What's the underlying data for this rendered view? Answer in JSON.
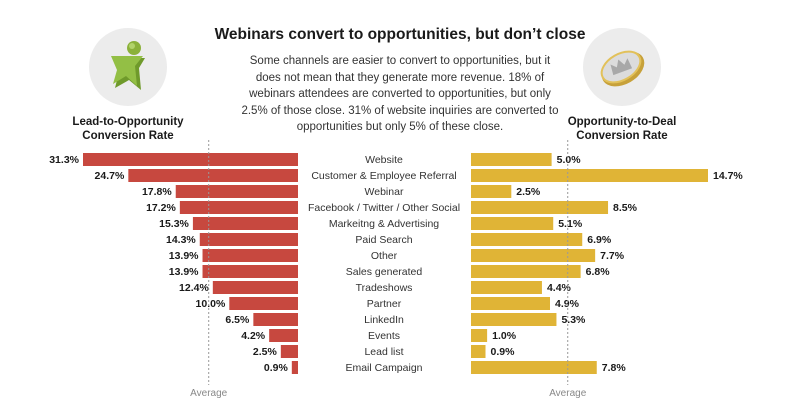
{
  "header": {
    "title": "Webinars convert to opportunities, but don’t close",
    "subtitle_lines": [
      "Some channels are easier to convert to opportunities, but it",
      "does not mean that they generate more revenue. 18% of",
      "webinars attendees are converted to opportunities, but only",
      "2.5% of those close. 31% of website inquiries are converted to",
      "opportunities but only 5% of these close."
    ]
  },
  "icons": {
    "left": "star-person-icon",
    "right": "crown-coin-icon"
  },
  "labels": {
    "left_line1": "Lead-to-Opportunity",
    "left_line2": "Conversion Rate",
    "right_line1": "Opportunity-to-Deal",
    "right_line2": "Conversion Rate"
  },
  "colors": {
    "left_bar": "#c7483f",
    "right_bar": "#e0b436"
  },
  "chart_data": {
    "type": "bar",
    "title": "Webinars convert to opportunities, but don’t close",
    "categories": [
      "Website",
      "Customer & Employee Referral",
      "Webinar",
      "Facebook / Twitter / Other Social",
      "Markeitng & Advertising",
      "Paid Search",
      "Other",
      "Sales generated",
      "Tradeshows",
      "Partner",
      "LinkedIn",
      "Events",
      "Lead list",
      "Email Campaign"
    ],
    "series": [
      {
        "name": "Lead-to-Opportunity Conversion Rate",
        "direction": "left",
        "values": [
          31.3,
          24.7,
          17.8,
          17.2,
          15.3,
          14.3,
          13.9,
          13.9,
          12.4,
          10.0,
          6.5,
          4.2,
          2.5,
          0.9
        ],
        "labels": [
          "31.3%",
          "24.7%",
          "17.8%",
          "17.2%",
          "15.3%",
          "14.3%",
          "13.9%",
          "13.9%",
          "12.4%",
          "10.0%",
          "6.5%",
          "4.2%",
          "2.5%",
          "0.9%"
        ],
        "average": 13.0,
        "xlim": [
          0,
          31.3
        ]
      },
      {
        "name": "Opportunity-to-Deal Conversion Rate",
        "direction": "right",
        "values": [
          5.0,
          14.7,
          2.5,
          8.5,
          5.1,
          6.9,
          7.7,
          6.8,
          4.4,
          4.9,
          5.3,
          1.0,
          0.9,
          7.8
        ],
        "labels": [
          "5.0%",
          "14.7%",
          "2.5%",
          "8.5%",
          "5.1%",
          "6.9%",
          "7.7%",
          "6.8%",
          "4.4%",
          "4.9%",
          "5.3%",
          "1.0%",
          "0.9%",
          "7.8%"
        ],
        "average": 6.0,
        "xlim": [
          0,
          14.7
        ]
      }
    ],
    "average_label": "Average",
    "grid": false,
    "legend": "none"
  }
}
